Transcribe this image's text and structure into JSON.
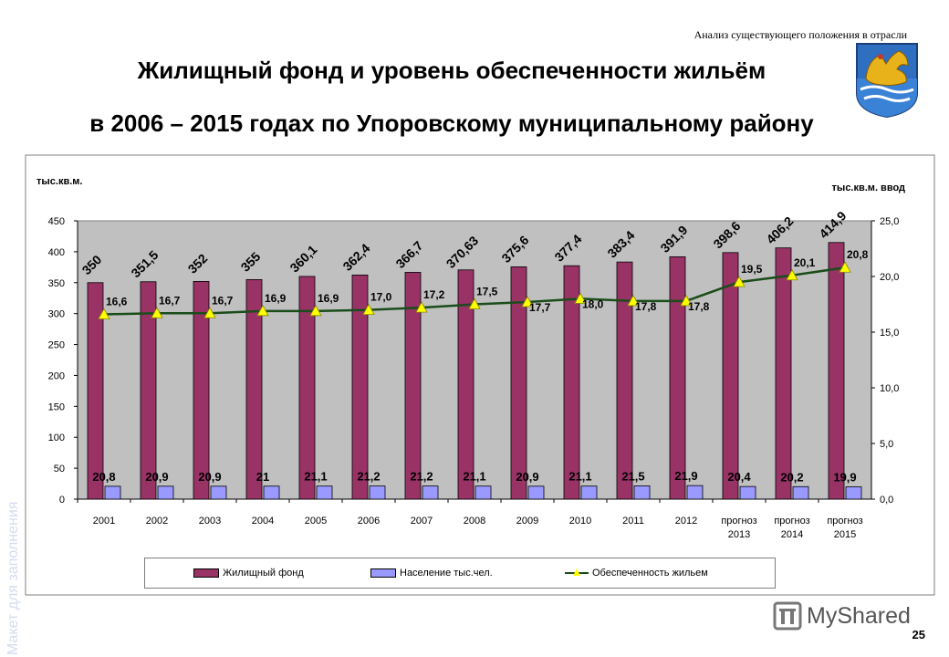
{
  "header": {
    "subtitle": "Анализ существующего положения в отрасли",
    "title_line1": "Жилищный фонд и уровень обеспеченности жильём",
    "title_line2": "в 2006 – 2015 годах  по Упоровскому муниципальному району"
  },
  "watermark": "Макет для заполнения",
  "logo_text": "MyShared",
  "page_number": "25",
  "colors": {
    "housing_bar": "#993366",
    "population_bar": "#9999ff",
    "line": "#1a4d1a",
    "marker": "#ffff00",
    "plot_bg": "#c0c0c0"
  },
  "chart_data": {
    "type": "bar",
    "left_axis_label": "тыс.кв.м.",
    "right_axis_label": "тыс.кв.м. ввод",
    "ylim": [
      0,
      450
    ],
    "y_ticks": [
      "0",
      "50",
      "100",
      "150",
      "200",
      "250",
      "300",
      "350",
      "400",
      "450"
    ],
    "y2lim": [
      0,
      25
    ],
    "y2_ticks": [
      "0,0",
      "5,0",
      "10,0",
      "15,0",
      "20,0",
      "25,0"
    ],
    "categories": [
      "2001",
      "2002",
      "2003",
      "2004",
      "2005",
      "2006",
      "2007",
      "2008",
      "2009",
      "2010",
      "2011",
      "2012",
      "прогноз 2013",
      "прогноз 2014",
      "прогноз 2015"
    ],
    "series": [
      {
        "name": "Жилищный фонд",
        "kind": "bar",
        "axis": "left",
        "values": [
          350,
          351.5,
          352,
          355,
          360.1,
          362.4,
          366.7,
          370.63,
          375.6,
          377.4,
          383.4,
          391.9,
          398.6,
          406.2,
          414.9
        ],
        "labels": [
          "350",
          "351,5",
          "352",
          "355",
          "360,1",
          "362,4",
          "366,7",
          "370,63",
          "375,6",
          "377,4",
          "383,4",
          "391,9",
          "398,6",
          "406,2",
          "414,9"
        ]
      },
      {
        "name": "Население тыс.чел.",
        "kind": "bar",
        "axis": "left",
        "values": [
          20.8,
          20.9,
          20.9,
          21,
          21.1,
          21.2,
          21.2,
          21.1,
          20.9,
          21.1,
          21.5,
          21.9,
          20.4,
          20.2,
          19.9
        ],
        "labels": [
          "20,8",
          "20,9",
          "20,9",
          "21",
          "21,1",
          "21,2",
          "21,2",
          "21,1",
          "20,9",
          "21,1",
          "21,5",
          "21,9",
          "20,4",
          "20,2",
          "19,9"
        ]
      },
      {
        "name": "Обеспеченность жильем",
        "kind": "line",
        "axis": "right",
        "values": [
          16.6,
          16.7,
          16.7,
          16.9,
          16.9,
          17.0,
          17.2,
          17.5,
          17.7,
          18.0,
          17.8,
          17.8,
          19.5,
          20.1,
          20.8
        ],
        "labels": [
          "16,6",
          "16,7",
          "16,7",
          "16,9",
          "16,9",
          "17,0",
          "17,2",
          "17,5",
          "17,7",
          "18,0",
          "17,8",
          "17,8",
          "19,5",
          "20,1",
          "20,8"
        ]
      }
    ]
  }
}
